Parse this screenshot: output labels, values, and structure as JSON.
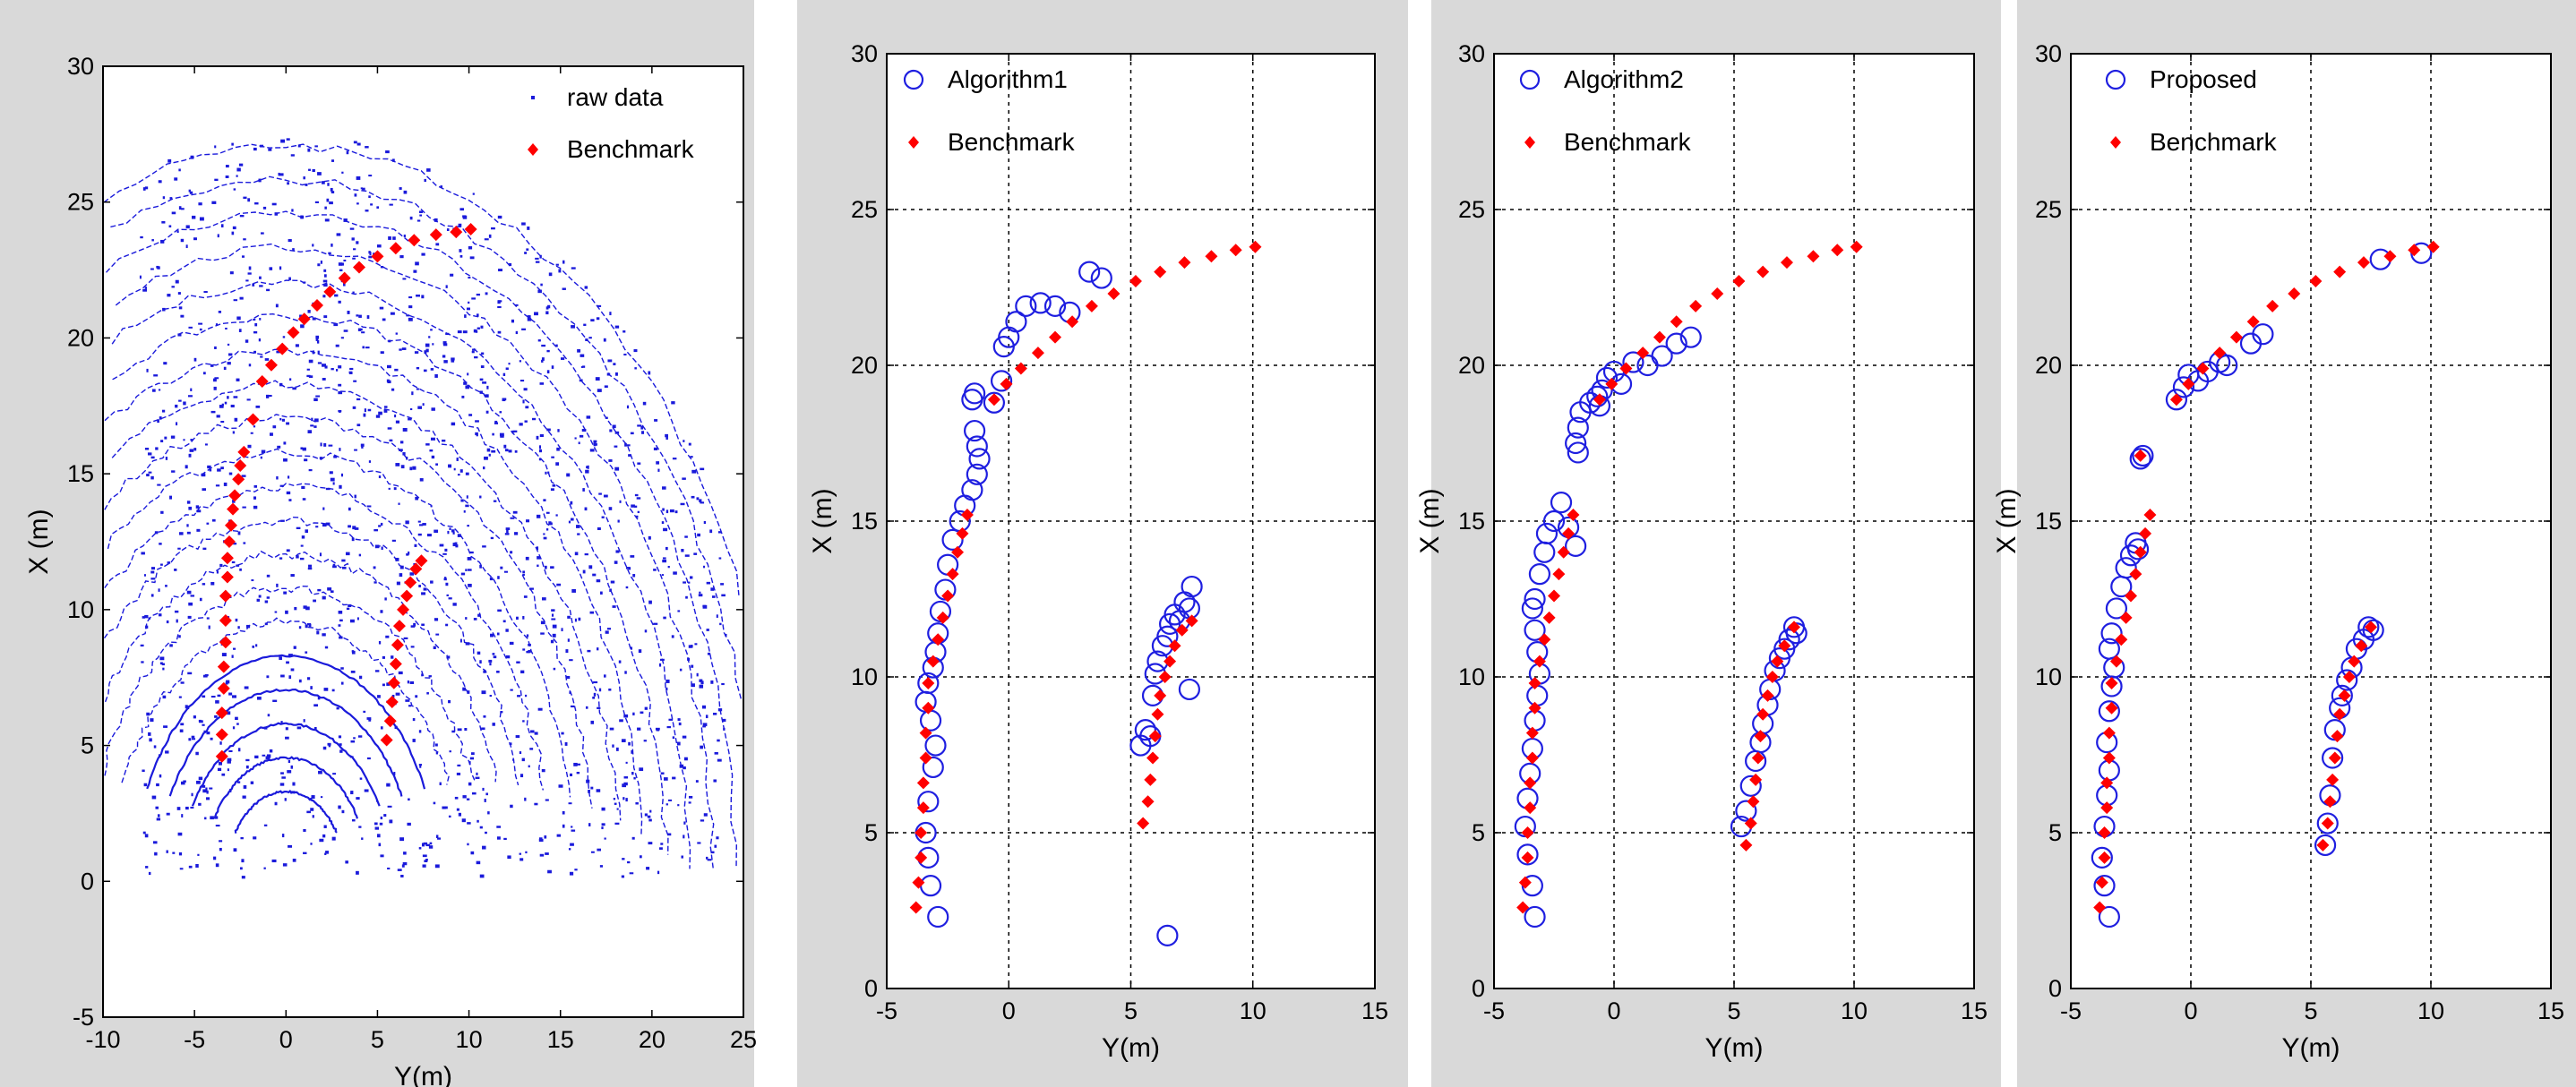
{
  "colors": {
    "raw": "#1a1adb",
    "benchmark": "#ff0000",
    "algo": "#1f1fe0",
    "panel_bg": "#d9d9d9",
    "grid": "#000000"
  },
  "chart_data": [
    {
      "type": "scatter",
      "title": "",
      "xlabel": "Y(m)",
      "ylabel": "X (m)",
      "xlim": [
        -10,
        25
      ],
      "ylim": [
        -5,
        30
      ],
      "xticks": [
        "-10",
        "-5",
        "0",
        "5",
        "10",
        "15",
        "20",
        "25"
      ],
      "yticks": [
        "-5",
        "0",
        "5",
        "10",
        "15",
        "20",
        "25",
        "30"
      ],
      "grid": false,
      "legend": "top-right",
      "legend_entries": [
        "raw data",
        "Benchmark"
      ],
      "series": [
        {
          "name": "raw data",
          "marker": "dot",
          "values": "dense laser scan returns: concentric arcs around origin plus scattered clutter over Y -8..24, X 0..28"
        },
        {
          "name": "Benchmark",
          "marker": "diamond",
          "x": [
            -3.5,
            -3.5,
            -3.5,
            -3.4,
            -3.4,
            -3.3,
            -3.3,
            -3.3,
            -3.2,
            -3.2,
            -3.1,
            -3.0,
            -2.9,
            -2.8,
            -2.6,
            -2.5,
            -2.3,
            5.5,
            5.7,
            5.8,
            5.9,
            6.0,
            6.1,
            6.2,
            6.4,
            6.6,
            6.8,
            7.1,
            7.4,
            -1.8,
            -1.3,
            -0.8,
            -0.2,
            0.4,
            1.0,
            1.7,
            2.4,
            3.2,
            4.0,
            5.0,
            6.0,
            7.0,
            8.2,
            9.3,
            10.1
          ],
          "y": [
            4.6,
            5.4,
            6.2,
            7.1,
            7.9,
            8.8,
            9.6,
            10.5,
            11.2,
            11.9,
            12.5,
            13.1,
            13.7,
            14.2,
            14.8,
            15.3,
            15.8,
            5.2,
            5.9,
            6.6,
            7.3,
            8.0,
            8.7,
            9.4,
            10.0,
            10.5,
            11.0,
            11.5,
            11.8,
            17.0,
            18.4,
            19.0,
            19.6,
            20.2,
            20.7,
            21.2,
            21.7,
            22.2,
            22.6,
            23.0,
            23.3,
            23.6,
            23.8,
            23.9,
            24.0
          ]
        }
      ]
    },
    {
      "type": "scatter",
      "title": "",
      "xlabel": "Y(m)",
      "ylabel": "X (m)",
      "xlim": [
        -5,
        15
      ],
      "ylim": [
        0,
        30
      ],
      "xticks": [
        "-5",
        "0",
        "5",
        "10",
        "15"
      ],
      "yticks": [
        "0",
        "5",
        "10",
        "15",
        "20",
        "25",
        "30"
      ],
      "grid": true,
      "legend": "top-left",
      "legend_entries": [
        "Algorithm1",
        "Benchmark"
      ],
      "series": [
        {
          "name": "Algorithm1",
          "marker": "circle",
          "x": [
            -2.9,
            -3.2,
            -3.3,
            -3.4,
            -3.3,
            -3.1,
            -3.0,
            -3.2,
            -3.4,
            -3.3,
            -3.1,
            -3.0,
            -2.9,
            -2.8,
            -2.6,
            -2.5,
            -2.3,
            -2.0,
            -1.8,
            -1.5,
            -1.3,
            -1.2,
            -1.3,
            -1.4,
            -1.5,
            -1.4,
            -0.6,
            -0.3,
            -0.2,
            0.0,
            0.3,
            0.7,
            1.3,
            1.9,
            2.5,
            3.3,
            3.8,
            5.4,
            5.6,
            5.8,
            5.9,
            6.0,
            6.1,
            6.3,
            6.5,
            6.6,
            6.8,
            7.0,
            7.2,
            7.4,
            7.5,
            7.4,
            6.5
          ],
          "y": [
            2.3,
            3.3,
            4.2,
            5.0,
            6.0,
            7.1,
            7.8,
            8.6,
            9.2,
            9.8,
            10.3,
            10.8,
            11.4,
            12.1,
            12.8,
            13.6,
            14.4,
            15.0,
            15.5,
            16.0,
            16.5,
            17.0,
            17.4,
            17.9,
            18.9,
            19.1,
            18.8,
            19.5,
            20.6,
            20.9,
            21.4,
            21.9,
            22.0,
            21.9,
            21.7,
            23.0,
            22.8,
            7.8,
            8.3,
            8.1,
            9.4,
            10.1,
            10.5,
            11.0,
            11.3,
            11.7,
            12.0,
            11.8,
            12.4,
            12.2,
            12.9,
            9.6,
            1.7
          ]
        },
        {
          "name": "Benchmark",
          "marker": "diamond",
          "x": [
            -3.8,
            -3.7,
            -3.6,
            -3.6,
            -3.5,
            -3.5,
            -3.4,
            -3.4,
            -3.3,
            -3.3,
            -3.1,
            -2.9,
            -2.7,
            -2.5,
            -2.3,
            -2.1,
            -1.9,
            -1.7,
            5.5,
            5.7,
            5.8,
            5.9,
            6.0,
            6.1,
            6.2,
            6.4,
            6.6,
            6.8,
            7.1,
            7.5,
            -0.6,
            -0.1,
            0.5,
            1.2,
            1.9,
            2.6,
            3.4,
            4.3,
            5.2,
            6.2,
            7.2,
            8.3,
            9.3,
            10.1
          ],
          "y": [
            2.6,
            3.4,
            4.2,
            5.0,
            5.8,
            6.6,
            7.4,
            8.2,
            9.0,
            9.8,
            10.5,
            11.2,
            11.9,
            12.6,
            13.3,
            14.0,
            14.6,
            15.2,
            5.3,
            6.0,
            6.7,
            7.4,
            8.1,
            8.8,
            9.4,
            10.0,
            10.5,
            11.0,
            11.5,
            11.8,
            18.9,
            19.4,
            19.9,
            20.4,
            20.9,
            21.4,
            21.9,
            22.3,
            22.7,
            23.0,
            23.3,
            23.5,
            23.7,
            23.8
          ]
        }
      ]
    },
    {
      "type": "scatter",
      "title": "",
      "xlabel": "Y(m)",
      "ylabel": "X (m)",
      "xlim": [
        -5,
        15
      ],
      "ylim": [
        0,
        30
      ],
      "xticks": [
        "-5",
        "0",
        "5",
        "10",
        "15"
      ],
      "yticks": [
        "0",
        "5",
        "10",
        "15",
        "20",
        "25",
        "30"
      ],
      "grid": true,
      "legend": "top-left",
      "legend_entries": [
        "Algorithm2",
        "Benchmark"
      ],
      "series": [
        {
          "name": "Algorithm2",
          "marker": "circle",
          "x": [
            -3.3,
            -3.4,
            -3.6,
            -3.7,
            -3.6,
            -3.5,
            -3.4,
            -3.3,
            -3.2,
            -3.1,
            -3.2,
            -3.3,
            -3.4,
            -3.3,
            -3.1,
            -2.9,
            -2.8,
            -2.5,
            -2.2,
            -1.9,
            -1.6,
            -1.5,
            -1.6,
            -1.5,
            -1.4,
            -1.0,
            -0.7,
            -0.6,
            -0.5,
            -0.3,
            0.0,
            0.3,
            0.8,
            1.4,
            2.0,
            2.6,
            3.2,
            5.3,
            5.5,
            5.7,
            5.9,
            6.1,
            6.2,
            6.4,
            6.5,
            6.7,
            6.9,
            7.1,
            7.3,
            7.5,
            7.6
          ],
          "y": [
            2.3,
            3.3,
            4.3,
            5.2,
            6.1,
            6.9,
            7.7,
            8.6,
            9.4,
            10.1,
            10.8,
            11.5,
            12.2,
            12.5,
            13.3,
            14.0,
            14.6,
            15.0,
            15.6,
            14.8,
            14.2,
            17.2,
            17.5,
            18.0,
            18.5,
            18.8,
            19.0,
            18.7,
            19.2,
            19.6,
            19.8,
            19.4,
            20.1,
            20.0,
            20.3,
            20.7,
            20.9,
            5.2,
            5.7,
            6.5,
            7.3,
            7.9,
            8.5,
            9.1,
            9.6,
            10.2,
            10.6,
            10.9,
            11.2,
            11.6,
            11.4
          ]
        },
        {
          "name": "Benchmark",
          "marker": "diamond",
          "x": [
            -3.8,
            -3.7,
            -3.6,
            -3.6,
            -3.5,
            -3.5,
            -3.4,
            -3.4,
            -3.3,
            -3.3,
            -3.1,
            -2.9,
            -2.7,
            -2.5,
            -2.3,
            -2.1,
            -1.9,
            -1.7,
            5.5,
            5.7,
            5.8,
            5.9,
            6.0,
            6.1,
            6.2,
            6.4,
            6.6,
            6.8,
            7.1,
            7.5,
            -0.6,
            -0.1,
            0.5,
            1.2,
            1.9,
            2.6,
            3.4,
            4.3,
            5.2,
            6.2,
            7.2,
            8.3,
            9.3,
            10.1
          ],
          "y": [
            2.6,
            3.4,
            4.2,
            5.0,
            5.8,
            6.6,
            7.4,
            8.2,
            9.0,
            9.8,
            10.5,
            11.2,
            11.9,
            12.6,
            13.3,
            14.0,
            14.6,
            15.2,
            4.6,
            5.3,
            6.0,
            6.7,
            7.4,
            8.1,
            8.8,
            9.4,
            10.0,
            10.5,
            11.0,
            11.6,
            18.9,
            19.4,
            19.9,
            20.4,
            20.9,
            21.4,
            21.9,
            22.3,
            22.7,
            23.0,
            23.3,
            23.5,
            23.7,
            23.8
          ]
        }
      ]
    },
    {
      "type": "scatter",
      "title": "",
      "xlabel": "Y(m)",
      "ylabel": "X (m)",
      "xlim": [
        -5,
        15
      ],
      "ylim": [
        0,
        30
      ],
      "xticks": [
        "-5",
        "0",
        "5",
        "10",
        "15"
      ],
      "yticks": [
        "0",
        "5",
        "10",
        "15",
        "20",
        "25",
        "30"
      ],
      "grid": true,
      "legend": "top-left",
      "legend_entries": [
        "Proposed",
        "Benchmark"
      ],
      "series": [
        {
          "name": "Proposed",
          "marker": "circle",
          "x": [
            -3.4,
            -3.6,
            -3.7,
            -3.6,
            -3.5,
            -3.4,
            -3.5,
            -3.4,
            -3.3,
            -3.2,
            -3.4,
            -3.3,
            -3.1,
            -2.9,
            -2.7,
            -2.5,
            -2.3,
            -2.2,
            -2.0,
            -2.1,
            -0.6,
            -0.3,
            -0.1,
            0.3,
            0.7,
            1.2,
            1.5,
            2.5,
            3.0,
            5.6,
            5.7,
            5.8,
            5.9,
            6.0,
            6.2,
            6.3,
            6.5,
            6.7,
            6.9,
            7.2,
            7.4,
            7.6,
            7.9,
            9.6
          ],
          "y": [
            2.3,
            3.3,
            4.2,
            5.2,
            6.2,
            7.0,
            7.9,
            8.9,
            9.7,
            10.3,
            10.9,
            11.4,
            12.2,
            12.9,
            13.5,
            13.9,
            14.3,
            14.1,
            17.1,
            17.0,
            18.9,
            19.3,
            19.7,
            19.5,
            19.8,
            20.1,
            20.0,
            20.7,
            21.0,
            4.6,
            5.3,
            6.2,
            7.4,
            8.3,
            9.0,
            9.4,
            9.9,
            10.3,
            10.9,
            11.2,
            11.6,
            11.5,
            23.4,
            23.6
          ]
        },
        {
          "name": "Benchmark",
          "marker": "diamond",
          "x": [
            -3.8,
            -3.7,
            -3.6,
            -3.6,
            -3.5,
            -3.5,
            -3.4,
            -3.4,
            -3.3,
            -3.3,
            -3.1,
            -2.9,
            -2.7,
            -2.5,
            -2.3,
            -2.1,
            -1.9,
            -1.7,
            5.5,
            5.7,
            5.8,
            5.9,
            6.0,
            6.1,
            6.2,
            6.4,
            6.6,
            6.8,
            7.1,
            7.5,
            -2.1,
            -0.6,
            -0.1,
            0.5,
            1.2,
            1.9,
            2.6,
            3.4,
            4.3,
            5.2,
            6.2,
            7.2,
            8.3,
            9.3,
            10.1
          ],
          "y": [
            2.6,
            3.4,
            4.2,
            5.0,
            5.8,
            6.6,
            7.4,
            8.2,
            9.0,
            9.8,
            10.5,
            11.2,
            11.9,
            12.6,
            13.3,
            14.0,
            14.6,
            15.2,
            4.6,
            5.3,
            6.0,
            6.7,
            7.4,
            8.1,
            8.8,
            9.4,
            10.0,
            10.5,
            11.0,
            11.6,
            17.1,
            18.9,
            19.4,
            19.9,
            20.4,
            20.9,
            21.4,
            21.9,
            22.3,
            22.7,
            23.0,
            23.3,
            23.5,
            23.7,
            23.8
          ]
        }
      ]
    }
  ]
}
